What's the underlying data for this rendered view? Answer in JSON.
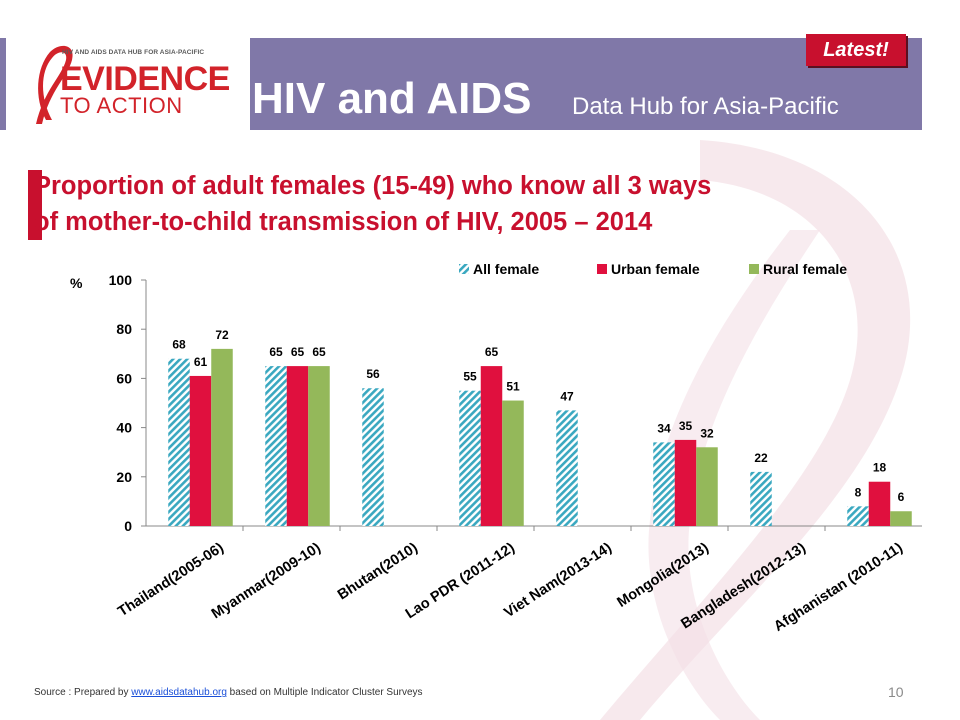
{
  "header": {
    "logo_top_text": "HIV AND AIDS DATA HUB FOR ASIA-PACIFIC",
    "logo_evidence": "EVIDENCE",
    "logo_to_action": "TO ACTION",
    "title": "HIV and AIDS",
    "subtitle": "Data Hub for Asia-Pacific",
    "badge": "Latest!"
  },
  "slide": {
    "title_line1": "Proportion of adult females (15-49) who know all 3 ways",
    "title_line2": "of mother-to-child transmission of HIV, 2005 – 2014",
    "page_number": "10"
  },
  "source": {
    "prefix": "Source : Prepared by ",
    "link": "www.aidsdatahub.org",
    "suffix": " based on Multiple Indicator Cluster Surveys"
  },
  "colors": {
    "header_bg": "#8078a8",
    "brand_red": "#c8102e",
    "all_female": "#3aa8c0",
    "urban_female": "#e0103e",
    "rural_female": "#94b85a"
  },
  "chart_data": {
    "type": "bar",
    "ylabel": "%",
    "ylim": [
      0,
      100
    ],
    "yticks": [
      0,
      20,
      40,
      60,
      80,
      100
    ],
    "legend_position": "top-right",
    "categories": [
      "Thailand(2005-06)",
      "Myanmar(2009-10)",
      "Bhutan(2010)",
      "Lao PDR (2011-12)",
      "Viet Nam(2013-14)",
      "Mongolia(2013)",
      "Bangladesh(2012-13)",
      "Afghanistan (2010-11)"
    ],
    "series": [
      {
        "name": "All female",
        "values": [
          68,
          65,
          56,
          55,
          47,
          34,
          22,
          8
        ]
      },
      {
        "name": "Urban female",
        "values": [
          61,
          65,
          null,
          65,
          null,
          35,
          null,
          18
        ]
      },
      {
        "name": "Rural female",
        "values": [
          72,
          65,
          null,
          51,
          null,
          32,
          null,
          6
        ]
      }
    ]
  }
}
